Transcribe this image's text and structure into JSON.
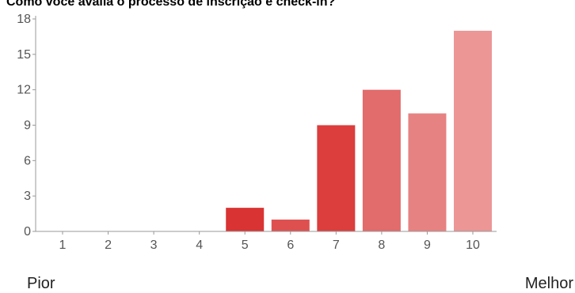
{
  "chart_data": {
    "type": "bar",
    "title": "Como você avalia o processo de inscrição e check-in?",
    "categories": [
      "1",
      "2",
      "3",
      "4",
      "5",
      "6",
      "7",
      "8",
      "9",
      "10"
    ],
    "values": [
      0,
      0,
      0,
      0,
      2,
      1,
      9,
      12,
      10,
      17
    ],
    "ylim": [
      0,
      18
    ],
    "yticks": [
      0,
      3,
      6,
      9,
      12,
      15,
      18
    ],
    "xlabel": "",
    "ylabel": "",
    "grid": false,
    "bar_colors": [
      "#d93333",
      "#d93333",
      "#d93333",
      "#d93333",
      "#d93333",
      "#de5050",
      "#dc3d3d",
      "#e26b6b",
      "#e78282",
      "#ec9696"
    ],
    "axis_color": "#999999"
  },
  "scale_labels": {
    "low": "Pior",
    "high": "Melhor"
  }
}
